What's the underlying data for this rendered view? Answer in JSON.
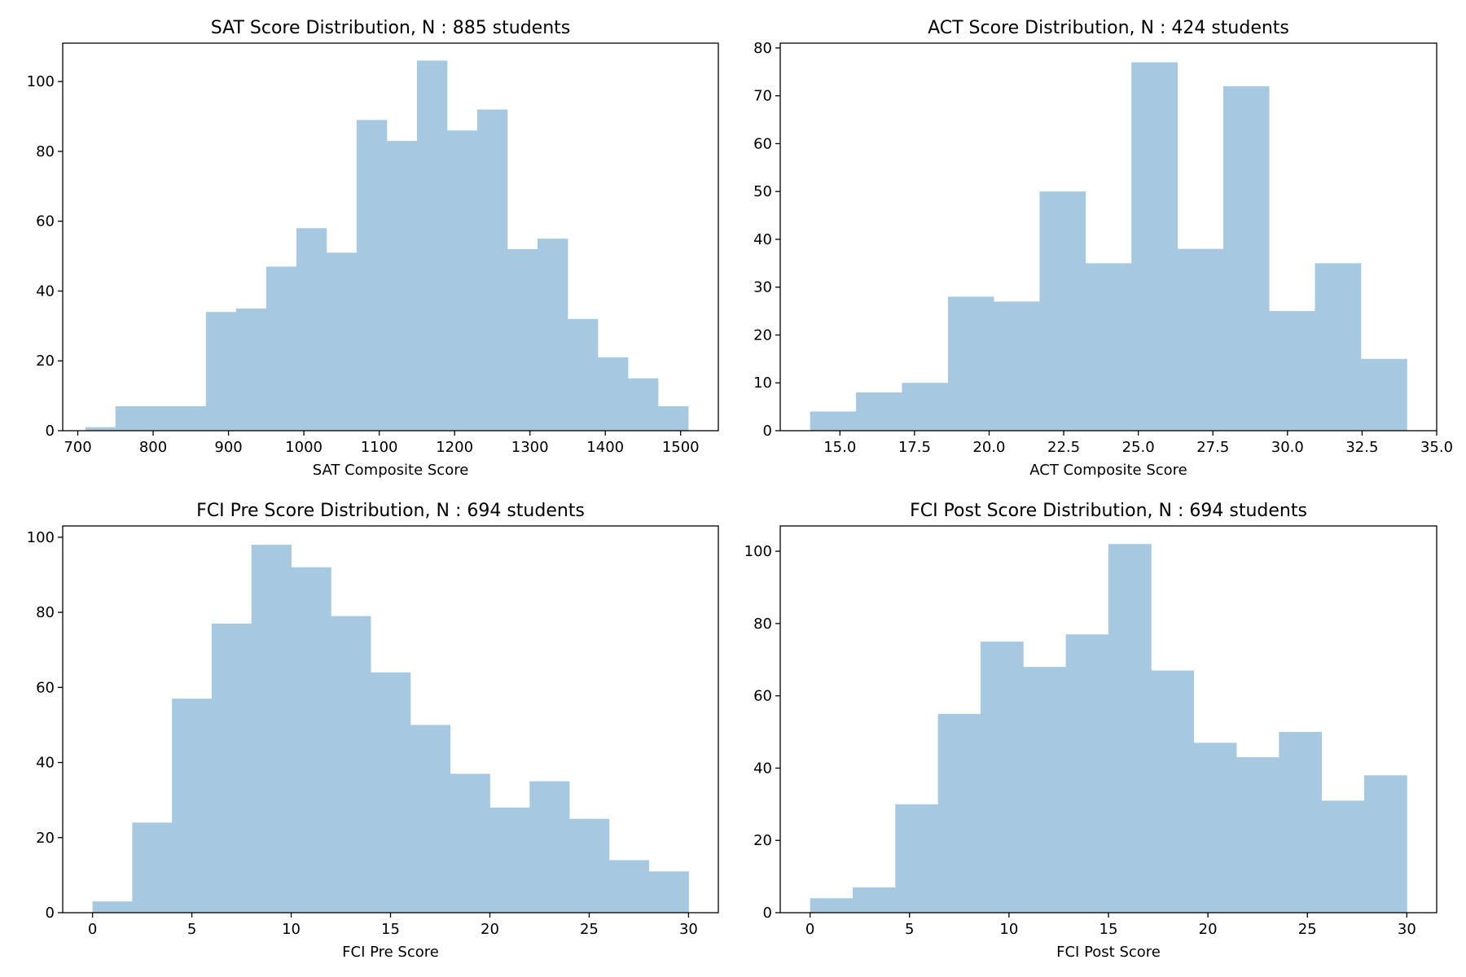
{
  "colors": {
    "bar": "#a6c8e0",
    "axis": "#000000",
    "background": "#ffffff"
  },
  "chart_data": [
    {
      "type": "bar",
      "title": "SAT Score Distribution, N : 885 students",
      "xlabel": "SAT Composite Score",
      "ylabel": "",
      "bin_edges": [
        710,
        750,
        790,
        830,
        870,
        910,
        950,
        990,
        1030,
        1070,
        1110,
        1150,
        1190,
        1230,
        1270,
        1310,
        1350,
        1390,
        1430,
        1470,
        1510
      ],
      "values": [
        1,
        7,
        7,
        7,
        34,
        35,
        47,
        58,
        51,
        89,
        83,
        106,
        86,
        92,
        52,
        55,
        32,
        21,
        15,
        7
      ],
      "xlim": [
        680,
        1550
      ],
      "ylim": [
        0,
        111
      ],
      "xticks": [
        700,
        800,
        900,
        1000,
        1100,
        1200,
        1300,
        1400,
        1500
      ],
      "xtick_labels": [
        "700",
        "800",
        "900",
        "1000",
        "1100",
        "1200",
        "1300",
        "1400",
        "1500"
      ],
      "yticks": [
        0,
        20,
        40,
        60,
        80,
        100
      ],
      "ytick_labels": [
        "0",
        "20",
        "40",
        "60",
        "80",
        "100"
      ],
      "grid": false
    },
    {
      "type": "bar",
      "title": "ACT Score Distribution, N : 424 students",
      "xlabel": "ACT Composite Score",
      "ylabel": "",
      "bin_edges": [
        14.0,
        15.54,
        17.08,
        18.62,
        20.15,
        21.69,
        23.23,
        24.77,
        26.31,
        27.85,
        29.38,
        30.92,
        32.46,
        34.0
      ],
      "values": [
        4,
        8,
        10,
        28,
        27,
        50,
        35,
        77,
        38,
        72,
        25,
        35,
        15
      ],
      "xlim": [
        13.0,
        35.0
      ],
      "ylim": [
        0,
        81
      ],
      "xticks": [
        15.0,
        17.5,
        20.0,
        22.5,
        25.0,
        27.5,
        30.0,
        32.5,
        35.0
      ],
      "xtick_labels": [
        "15.0",
        "17.5",
        "20.0",
        "22.5",
        "25.0",
        "27.5",
        "30.0",
        "32.5",
        "35.0"
      ],
      "yticks": [
        0,
        10,
        20,
        30,
        40,
        50,
        60,
        70,
        80
      ],
      "ytick_labels": [
        "0",
        "10",
        "20",
        "30",
        "40",
        "50",
        "60",
        "70",
        "80"
      ],
      "grid": false
    },
    {
      "type": "bar",
      "title": "FCI Pre Score Distribution, N : 694 students",
      "xlabel": "FCI Pre Score",
      "ylabel": "",
      "bin_edges": [
        0,
        2,
        4,
        6,
        8,
        10,
        12,
        14,
        16,
        18,
        20,
        22,
        24,
        26,
        28,
        30
      ],
      "values": [
        3,
        24,
        57,
        77,
        98,
        92,
        79,
        64,
        50,
        37,
        28,
        35,
        25,
        14,
        11
      ],
      "xlim": [
        -1.5,
        31.5
      ],
      "ylim": [
        0,
        103
      ],
      "xticks": [
        0,
        5,
        10,
        15,
        20,
        25,
        30
      ],
      "xtick_labels": [
        "0",
        "5",
        "10",
        "15",
        "20",
        "25",
        "30"
      ],
      "yticks": [
        0,
        20,
        40,
        60,
        80,
        100
      ],
      "ytick_labels": [
        "0",
        "20",
        "40",
        "60",
        "80",
        "100"
      ],
      "grid": false
    },
    {
      "type": "bar",
      "title": "FCI Post Score Distribution, N : 694 students",
      "xlabel": "FCI Post Score",
      "ylabel": "",
      "bin_edges": [
        0,
        2.143,
        4.286,
        6.429,
        8.571,
        10.714,
        12.857,
        15.0,
        17.143,
        19.286,
        21.429,
        23.571,
        25.714,
        27.857,
        30.0
      ],
      "values": [
        4,
        7,
        30,
        55,
        75,
        68,
        77,
        102,
        67,
        47,
        43,
        50,
        31,
        38
      ],
      "xlim": [
        -1.5,
        31.5
      ],
      "ylim": [
        0,
        107
      ],
      "xticks": [
        0,
        5,
        10,
        15,
        20,
        25,
        30
      ],
      "xtick_labels": [
        "0",
        "5",
        "10",
        "15",
        "20",
        "25",
        "30"
      ],
      "yticks": [
        0,
        20,
        40,
        60,
        80,
        100
      ],
      "ytick_labels": [
        "0",
        "20",
        "40",
        "60",
        "80",
        "100"
      ],
      "grid": false
    }
  ]
}
